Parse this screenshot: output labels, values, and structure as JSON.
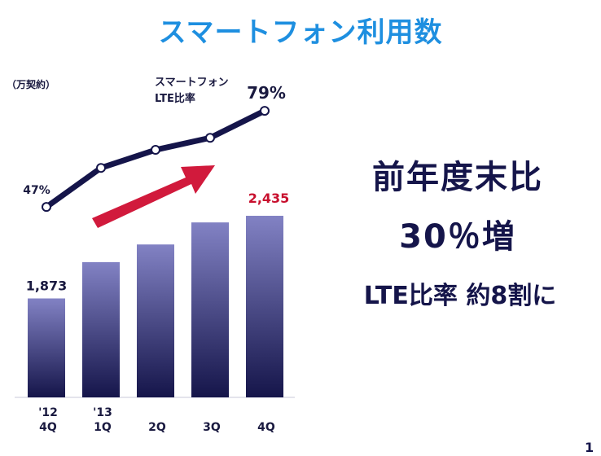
{
  "title": "スマートフォン利用数",
  "unit_label": "（万契約）",
  "ratio_label": "スマートフォン\nLTE比率",
  "headline_1": "前年度末比",
  "headline_2": "30％増",
  "headline_3": "LTE比率  約8割に",
  "page_number": "1",
  "colors": {
    "title": "#1e8fe0",
    "bar_top": "#8282c4",
    "bar_bottom": "#15154a",
    "line": "#15154a",
    "arrow": "#d11a3c",
    "highlight_value": "#c8102e"
  },
  "chart_data": {
    "type": "bar",
    "categories": [
      [
        "'12",
        "4Q"
      ],
      [
        "'13",
        "1Q"
      ],
      [
        "2Q"
      ],
      [
        "3Q"
      ],
      [
        "4Q"
      ]
    ],
    "values": [
      1873,
      null,
      null,
      null,
      2435
    ],
    "value_labels": [
      "1,873",
      "",
      "",
      "",
      "2,435"
    ],
    "estimated_values": [
      1873,
      2120,
      2240,
      2390,
      2435
    ],
    "line_series": {
      "values": [
        47,
        60,
        66,
        70,
        79
      ],
      "labels": [
        "47%",
        "",
        "",
        "",
        "79%"
      ]
    }
  }
}
